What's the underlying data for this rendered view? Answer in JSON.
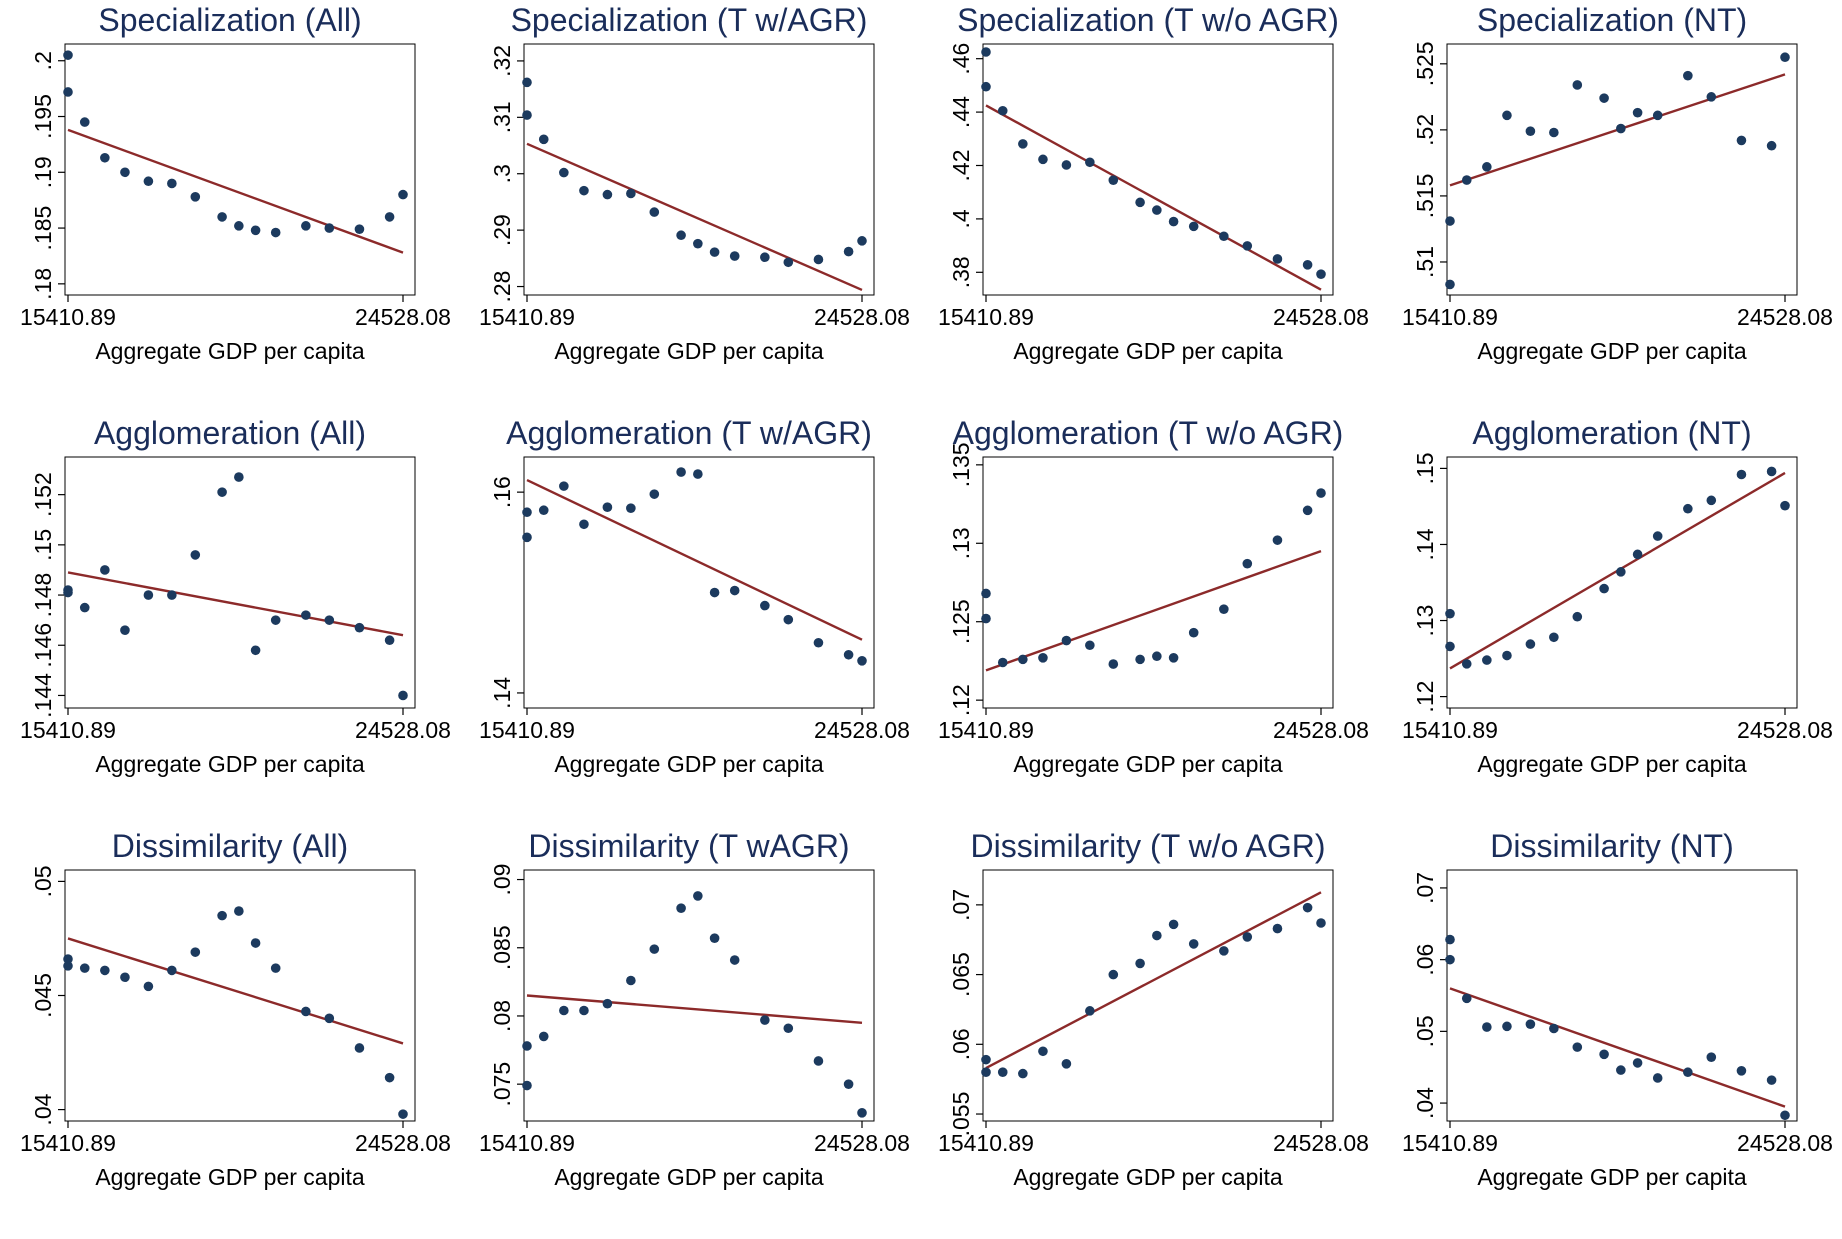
{
  "chart_data": [
    {
      "type": "scatter",
      "title": "Specialization (All)",
      "xlabel": "Aggregate GDP per capita",
      "xtick_labels": [
        "15410.89",
        "24528.08"
      ],
      "yticks": [
        ".18",
        ".185",
        ".19",
        ".195",
        ".2"
      ],
      "ylim": [
        0.179,
        0.2015
      ],
      "points": [
        [
          0,
          0.2005
        ],
        [
          0,
          0.1972
        ],
        [
          0.05,
          0.1945
        ],
        [
          0.11,
          0.1913
        ],
        [
          0.17,
          0.19
        ],
        [
          0.24,
          0.1892
        ],
        [
          0.31,
          0.189
        ],
        [
          0.38,
          0.1878
        ],
        [
          0.46,
          0.186
        ],
        [
          0.51,
          0.1852
        ],
        [
          0.56,
          0.1848
        ],
        [
          0.62,
          0.1846
        ],
        [
          0.71,
          0.1852
        ],
        [
          0.78,
          0.185
        ],
        [
          0.87,
          0.1849
        ],
        [
          0.96,
          0.186
        ],
        [
          1.0,
          0.188
        ]
      ],
      "fit": [
        [
          0,
          0.1938
        ],
        [
          1.0,
          0.1828
        ]
      ]
    },
    {
      "type": "scatter",
      "title": "Specialization (T w/AGR)",
      "xlabel": "Aggregate GDP per capita",
      "xtick_labels": [
        "15410.89",
        "24528.08"
      ],
      "yticks": [
        ".28",
        ".29",
        ".3",
        ".31",
        ".32"
      ],
      "ylim": [
        0.2785,
        0.323
      ],
      "points": [
        [
          0,
          0.3162
        ],
        [
          0,
          0.3104
        ],
        [
          0.05,
          0.3061
        ],
        [
          0.11,
          0.3002
        ],
        [
          0.17,
          0.297
        ],
        [
          0.24,
          0.2963
        ],
        [
          0.31,
          0.2965
        ],
        [
          0.38,
          0.2932
        ],
        [
          0.46,
          0.2891
        ],
        [
          0.51,
          0.2876
        ],
        [
          0.56,
          0.2861
        ],
        [
          0.62,
          0.2854
        ],
        [
          0.71,
          0.2852
        ],
        [
          0.78,
          0.2843
        ],
        [
          0.87,
          0.2848
        ],
        [
          0.96,
          0.2862
        ],
        [
          1.0,
          0.2881
        ]
      ],
      "fit": [
        [
          0,
          0.3053
        ],
        [
          1.0,
          0.2794
        ]
      ]
    },
    {
      "type": "scatter",
      "title": "Specialization (T w/o AGR)",
      "xlabel": "Aggregate GDP per capita",
      "xtick_labels": [
        "15410.89",
        "24528.08"
      ],
      "yticks": [
        ".38",
        ".4",
        ".42",
        ".44",
        ".46"
      ],
      "ylim": [
        0.3715,
        0.4655
      ],
      "points": [
        [
          0,
          0.4625
        ],
        [
          0,
          0.4495
        ],
        [
          0.05,
          0.4405
        ],
        [
          0.11,
          0.4281
        ],
        [
          0.17,
          0.4223
        ],
        [
          0.24,
          0.4202
        ],
        [
          0.31,
          0.4212
        ],
        [
          0.38,
          0.4145
        ],
        [
          0.46,
          0.4062
        ],
        [
          0.51,
          0.4033
        ],
        [
          0.56,
          0.399
        ],
        [
          0.62,
          0.3972
        ],
        [
          0.71,
          0.3935
        ],
        [
          0.78,
          0.3899
        ],
        [
          0.87,
          0.385
        ],
        [
          0.96,
          0.3828
        ],
        [
          1.0,
          0.3793
        ]
      ],
      "fit": [
        [
          0,
          0.4425
        ],
        [
          1.0,
          0.3735
        ]
      ]
    },
    {
      "type": "scatter",
      "title": "Specialization (NT)",
      "xlabel": "Aggregate GDP per capita",
      "xtick_labels": [
        "15410.89",
        "24528.08"
      ],
      "yticks": [
        ".51",
        ".515",
        ".52",
        ".525"
      ],
      "ylim": [
        0.5075,
        0.5265
      ],
      "points": [
        [
          0,
          0.5131
        ],
        [
          0,
          0.5083
        ],
        [
          0.05,
          0.5162
        ],
        [
          0.11,
          0.5172
        ],
        [
          0.17,
          0.5211
        ],
        [
          0.24,
          0.5199
        ],
        [
          0.31,
          0.5198
        ],
        [
          0.38,
          0.5234
        ],
        [
          0.46,
          0.5224
        ],
        [
          0.51,
          0.5201
        ],
        [
          0.56,
          0.5213
        ],
        [
          0.62,
          0.5211
        ],
        [
          0.71,
          0.5241
        ],
        [
          0.78,
          0.5225
        ],
        [
          0.87,
          0.5192
        ],
        [
          0.96,
          0.5188
        ],
        [
          1.0,
          0.5255
        ]
      ],
      "fit": [
        [
          0,
          0.5158
        ],
        [
          1.0,
          0.5242
        ]
      ]
    },
    {
      "type": "scatter",
      "title": "Agglomeration (All)",
      "xlabel": "Aggregate GDP per capita",
      "xtick_labels": [
        "15410.89",
        "24528.08"
      ],
      "yticks": [
        ".144",
        ".146",
        ".148",
        ".15",
        ".152"
      ],
      "ylim": [
        0.1435,
        0.1535
      ],
      "points": [
        [
          0,
          0.1482
        ],
        [
          0,
          0.1481
        ],
        [
          0.05,
          0.1475
        ],
        [
          0.11,
          0.149
        ],
        [
          0.17,
          0.1466
        ],
        [
          0.24,
          0.148
        ],
        [
          0.31,
          0.148
        ],
        [
          0.38,
          0.1496
        ],
        [
          0.46,
          0.1521
        ],
        [
          0.51,
          0.1527
        ],
        [
          0.56,
          0.1458
        ],
        [
          0.62,
          0.147
        ],
        [
          0.71,
          0.1472
        ],
        [
          0.78,
          0.147
        ],
        [
          0.87,
          0.1467
        ],
        [
          0.96,
          0.1462
        ],
        [
          1.0,
          0.144
        ]
      ],
      "fit": [
        [
          0,
          0.1489
        ],
        [
          1.0,
          0.1464
        ]
      ]
    },
    {
      "type": "scatter",
      "title": "Agglomeration (T w/AGR)",
      "xlabel": "Aggregate GDP per capita",
      "xtick_labels": [
        "15410.89",
        "24528.08"
      ],
      "yticks": [
        ".14",
        ".16"
      ],
      "ylim": [
        0.1385,
        0.1635
      ],
      "points": [
        [
          0,
          0.158
        ],
        [
          0,
          0.1555
        ],
        [
          0.05,
          0.1582
        ],
        [
          0.11,
          0.1606
        ],
        [
          0.17,
          0.1568
        ],
        [
          0.24,
          0.1585
        ],
        [
          0.31,
          0.1584
        ],
        [
          0.38,
          0.1598
        ],
        [
          0.46,
          0.162
        ],
        [
          0.51,
          0.1618
        ],
        [
          0.56,
          0.15
        ],
        [
          0.62,
          0.1502
        ],
        [
          0.71,
          0.1487
        ],
        [
          0.78,
          0.1473
        ],
        [
          0.87,
          0.145
        ],
        [
          0.96,
          0.1438
        ],
        [
          1.0,
          0.1432
        ]
      ],
      "fit": [
        [
          0,
          0.1612
        ],
        [
          1.0,
          0.1453
        ]
      ]
    },
    {
      "type": "scatter",
      "title": "Agglomeration (T w/o AGR)",
      "xlabel": "Aggregate GDP per capita",
      "xtick_labels": [
        "15410.89",
        "24528.08"
      ],
      "yticks": [
        ".12",
        ".125",
        ".13",
        ".135"
      ],
      "ylim": [
        0.1195,
        0.1355
      ],
      "points": [
        [
          0,
          0.1268
        ],
        [
          0,
          0.1252
        ],
        [
          0.05,
          0.1224
        ],
        [
          0.11,
          0.1226
        ],
        [
          0.17,
          0.1227
        ],
        [
          0.24,
          0.1238
        ],
        [
          0.31,
          0.1235
        ],
        [
          0.38,
          0.1223
        ],
        [
          0.46,
          0.1226
        ],
        [
          0.51,
          0.1228
        ],
        [
          0.56,
          0.1227
        ],
        [
          0.62,
          0.1243
        ],
        [
          0.71,
          0.1258
        ],
        [
          0.78,
          0.1287
        ],
        [
          0.87,
          0.1302
        ],
        [
          0.96,
          0.1321
        ],
        [
          1.0,
          0.1332
        ]
      ],
      "fit": [
        [
          0,
          0.1219
        ],
        [
          1.0,
          0.1295
        ]
      ]
    },
    {
      "type": "scatter",
      "title": "Agglomeration (NT)",
      "xlabel": "Aggregate GDP per capita",
      "xtick_labels": [
        "15410.89",
        "24528.08"
      ],
      "yticks": [
        ".12",
        ".13",
        ".14",
        ".15"
      ],
      "ylim": [
        0.1185,
        0.1515
      ],
      "points": [
        [
          0,
          0.1309
        ],
        [
          0,
          0.1266
        ],
        [
          0.05,
          0.1243
        ],
        [
          0.11,
          0.1248
        ],
        [
          0.17,
          0.1254
        ],
        [
          0.24,
          0.1269
        ],
        [
          0.31,
          0.1278
        ],
        [
          0.38,
          0.1305
        ],
        [
          0.46,
          0.1342
        ],
        [
          0.51,
          0.1364
        ],
        [
          0.56,
          0.1387
        ],
        [
          0.62,
          0.1411
        ],
        [
          0.71,
          0.1447
        ],
        [
          0.78,
          0.1458
        ],
        [
          0.87,
          0.1492
        ],
        [
          0.96,
          0.1496
        ],
        [
          1.0,
          0.1451
        ]
      ],
      "fit": [
        [
          0,
          0.1237
        ],
        [
          1.0,
          0.1494
        ]
      ]
    },
    {
      "type": "scatter",
      "title": "Dissimilarity (All)",
      "xlabel": "Aggregate GDP per capita",
      "xtick_labels": [
        "15410.89",
        "24528.08"
      ],
      "yticks": [
        ".04",
        ".045",
        ".05"
      ],
      "ylim": [
        0.0395,
        0.0505
      ],
      "points": [
        [
          0,
          0.0466
        ],
        [
          0,
          0.0463
        ],
        [
          0.05,
          0.0462
        ],
        [
          0.11,
          0.0461
        ],
        [
          0.17,
          0.0458
        ],
        [
          0.24,
          0.0454
        ],
        [
          0.31,
          0.0461
        ],
        [
          0.38,
          0.0469
        ],
        [
          0.46,
          0.0485
        ],
        [
          0.51,
          0.0487
        ],
        [
          0.56,
          0.0473
        ],
        [
          0.62,
          0.0462
        ],
        [
          0.71,
          0.0443
        ],
        [
          0.78,
          0.044
        ],
        [
          0.87,
          0.0427
        ],
        [
          0.96,
          0.0414
        ],
        [
          1.0,
          0.0398
        ]
      ],
      "fit": [
        [
          0,
          0.0475
        ],
        [
          1.0,
          0.0429
        ]
      ]
    },
    {
      "type": "scatter",
      "title": "Dissimilarity (T wAGR)",
      "xlabel": "Aggregate GDP per capita",
      "xtick_labels": [
        "15410.89",
        "24528.08"
      ],
      "yticks": [
        ".075",
        ".08",
        ".085",
        ".09"
      ],
      "ylim": [
        0.0723,
        0.0907
      ],
      "points": [
        [
          0,
          0.0778
        ],
        [
          0,
          0.0749
        ],
        [
          0.05,
          0.0785
        ],
        [
          0.11,
          0.0804
        ],
        [
          0.17,
          0.0804
        ],
        [
          0.24,
          0.0809
        ],
        [
          0.31,
          0.0826
        ],
        [
          0.38,
          0.0849
        ],
        [
          0.46,
          0.0879
        ],
        [
          0.51,
          0.0888
        ],
        [
          0.56,
          0.0857
        ],
        [
          0.62,
          0.0841
        ],
        [
          0.71,
          0.0797
        ],
        [
          0.78,
          0.0791
        ],
        [
          0.87,
          0.0767
        ],
        [
          0.96,
          0.075
        ],
        [
          1.0,
          0.0729
        ]
      ],
      "fit": [
        [
          0,
          0.0815
        ],
        [
          1.0,
          0.0795
        ]
      ]
    },
    {
      "type": "scatter",
      "title": "Dissimilarity (T w/o AGR)",
      "xlabel": "Aggregate GDP per capita",
      "xtick_labels": [
        "15410.89",
        "24528.08"
      ],
      "yticks": [
        ".055",
        ".06",
        ".065",
        ".07"
      ],
      "ylim": [
        0.0545,
        0.0725
      ],
      "points": [
        [
          0,
          0.0589
        ],
        [
          0,
          0.058
        ],
        [
          0.05,
          0.058
        ],
        [
          0.11,
          0.0579
        ],
        [
          0.17,
          0.0595
        ],
        [
          0.24,
          0.0586
        ],
        [
          0.31,
          0.0624
        ],
        [
          0.38,
          0.065
        ],
        [
          0.46,
          0.0658
        ],
        [
          0.51,
          0.0678
        ],
        [
          0.56,
          0.0686
        ],
        [
          0.62,
          0.0672
        ],
        [
          0.71,
          0.0667
        ],
        [
          0.78,
          0.0677
        ],
        [
          0.87,
          0.0683
        ],
        [
          0.96,
          0.0698
        ],
        [
          1.0,
          0.0687
        ]
      ],
      "fit": [
        [
          0,
          0.0583
        ],
        [
          1.0,
          0.0709
        ]
      ]
    },
    {
      "type": "scatter",
      "title": "Dissimilarity (NT)",
      "xlabel": "Aggregate GDP per capita",
      "xtick_labels": [
        "15410.89",
        "24528.08"
      ],
      "yticks": [
        ".04",
        ".05",
        ".06",
        ".07"
      ],
      "ylim": [
        0.0375,
        0.0725
      ],
      "points": [
        [
          0,
          0.0628
        ],
        [
          0,
          0.06
        ],
        [
          0.05,
          0.0546
        ],
        [
          0.11,
          0.0506
        ],
        [
          0.17,
          0.0507
        ],
        [
          0.24,
          0.051
        ],
        [
          0.31,
          0.0504
        ],
        [
          0.38,
          0.0478
        ],
        [
          0.46,
          0.0468
        ],
        [
          0.51,
          0.0446
        ],
        [
          0.56,
          0.0456
        ],
        [
          0.62,
          0.0435
        ],
        [
          0.71,
          0.0443
        ],
        [
          0.78,
          0.0464
        ],
        [
          0.87,
          0.0445
        ],
        [
          0.96,
          0.0432
        ],
        [
          1.0,
          0.0383
        ]
      ],
      "fit": [
        [
          0,
          0.056
        ],
        [
          1.0,
          0.0395
        ]
      ]
    }
  ],
  "colors": {
    "title": "#1a2d5a",
    "marker": "#1c3a5e",
    "fit_line": "#8c2a2a",
    "frame": "#000000"
  }
}
